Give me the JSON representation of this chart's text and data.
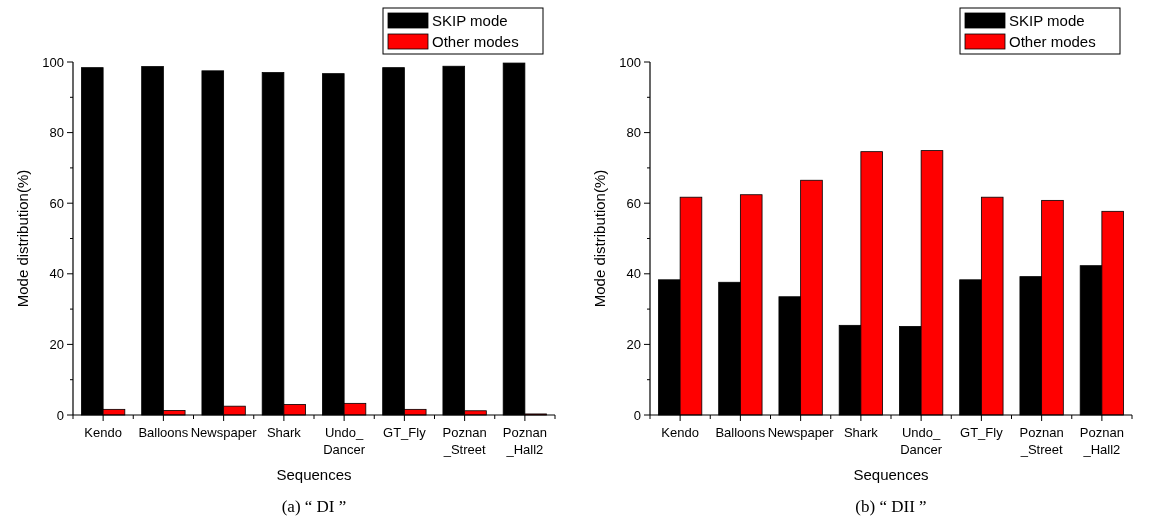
{
  "chart_data": [
    {
      "type": "bar",
      "title": "(a) “ DI ”",
      "xlabel": "Sequences",
      "ylabel": "Mode distribution(%)",
      "categories": [
        "Kendo",
        "Balloons",
        "Newspaper",
        "Shark",
        "Undo_\nDancer",
        "GT_Fly",
        "Poznan\n_Street",
        "Poznan\n_Hall2"
      ],
      "series": [
        {
          "name": "SKIP mode",
          "color": "#000000",
          "values": [
            98.4,
            98.7,
            97.5,
            97.0,
            96.7,
            98.4,
            98.8,
            99.7
          ]
        },
        {
          "name": "Other modes",
          "color": "#ff0000",
          "values": [
            1.6,
            1.3,
            2.5,
            3.0,
            3.3,
            1.6,
            1.2,
            0.3
          ]
        }
      ],
      "ylim": [
        0,
        100
      ],
      "yticks": [
        0,
        20,
        40,
        60,
        80,
        100
      ],
      "grid": false,
      "legend": "top right"
    },
    {
      "type": "bar",
      "title": "(b) “ DII ”",
      "xlabel": "Sequences",
      "ylabel": "Mode distribution(%)",
      "categories": [
        "Kendo",
        "Balloons",
        "Newspaper",
        "Shark",
        "Undo_\nDancer",
        "GT_Fly",
        "Poznan\n_Street",
        "Poznan\n_Hall2"
      ],
      "series": [
        {
          "name": "SKIP mode",
          "color": "#000000",
          "values": [
            38.3,
            37.6,
            33.5,
            25.4,
            25.1,
            38.3,
            39.2,
            42.3
          ]
        },
        {
          "name": "Other modes",
          "color": "#ff0000",
          "values": [
            61.7,
            62.4,
            66.5,
            74.6,
            74.9,
            61.7,
            60.8,
            57.7
          ]
        }
      ],
      "ylim": [
        0,
        100
      ],
      "yticks": [
        0,
        20,
        40,
        60,
        80,
        100
      ],
      "grid": false,
      "legend": "top right"
    }
  ]
}
